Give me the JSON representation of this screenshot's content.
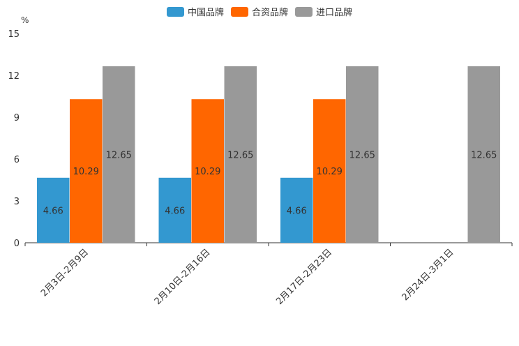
{
  "chart_data": {
    "type": "bar",
    "title": "",
    "ylabel": "%",
    "xlabel": "",
    "ylim": [
      0,
      15
    ],
    "yticks": [
      0,
      3,
      6,
      9,
      12,
      15
    ],
    "categories": [
      "2月3日-2月9日",
      "2月10日-2月16日",
      "2月17日-2月23日",
      "2月24日-3月1日"
    ],
    "series": [
      {
        "name": "中国品牌",
        "color": "#3398d0",
        "values": [
          4.66,
          4.66,
          4.66,
          null
        ],
        "labels": [
          "4.66",
          "4.66",
          "4.66",
          ""
        ]
      },
      {
        "name": "合资品牌",
        "color": "#ff6600",
        "values": [
          10.29,
          10.29,
          10.29,
          null
        ],
        "labels": [
          "10.29",
          "10.29",
          "10.29",
          ""
        ]
      },
      {
        "name": "进口品牌",
        "color": "#999999",
        "values": [
          12.65,
          12.65,
          12.65,
          12.65
        ],
        "labels": [
          "12.65",
          "12.65",
          "12.65",
          "12.65"
        ]
      }
    ],
    "legend_position": "top-center",
    "grid": false
  }
}
